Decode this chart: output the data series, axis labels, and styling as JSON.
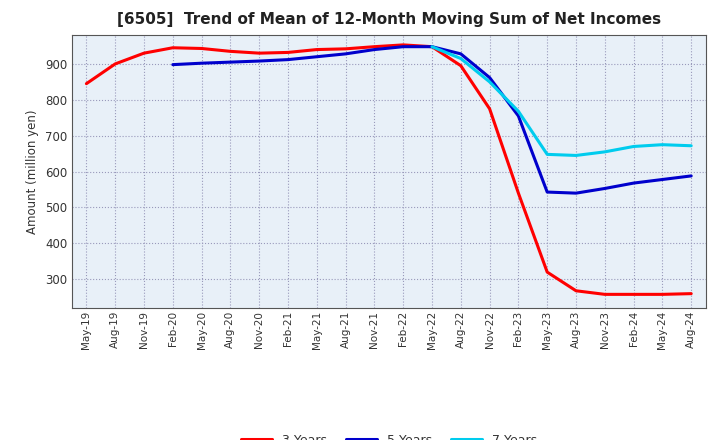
{
  "title": "[6505]  Trend of Mean of 12-Month Moving Sum of Net Incomes",
  "ylabel": "Amount (million yen)",
  "background_color": "#ffffff",
  "plot_bg_color": "#e8f0f8",
  "grid_color": "#9999bb",
  "x_labels": [
    "May-19",
    "Aug-19",
    "Nov-19",
    "Feb-20",
    "May-20",
    "Aug-20",
    "Nov-20",
    "Feb-21",
    "May-21",
    "Aug-21",
    "Nov-21",
    "Feb-22",
    "May-22",
    "Aug-22",
    "Nov-22",
    "Feb-23",
    "May-23",
    "Aug-23",
    "Nov-23",
    "Feb-24",
    "May-24",
    "Aug-24"
  ],
  "ylim": [
    220,
    980
  ],
  "yticks": [
    300,
    400,
    500,
    600,
    700,
    800,
    900
  ],
  "colors": {
    "3 Years": "#ff0000",
    "5 Years": "#0000cc",
    "7 Years": "#00ccee",
    "10 Years": "#008800"
  },
  "series_3yr": [
    845,
    900,
    930,
    945,
    943,
    935,
    930,
    932,
    940,
    942,
    948,
    953,
    948,
    895,
    775,
    540,
    320,
    268,
    258,
    258,
    258,
    260
  ],
  "series_5yr": [
    null,
    null,
    null,
    898,
    902,
    905,
    908,
    912,
    920,
    928,
    940,
    948,
    948,
    928,
    862,
    755,
    543,
    540,
    553,
    568,
    578,
    588
  ],
  "series_7yr": [
    null,
    null,
    null,
    null,
    null,
    null,
    null,
    null,
    null,
    null,
    null,
    null,
    948,
    915,
    850,
    768,
    648,
    645,
    655,
    670,
    675,
    672
  ],
  "series_10yr": [
    null,
    null,
    null,
    null,
    null,
    null,
    null,
    null,
    null,
    null,
    null,
    null,
    null,
    null,
    null,
    null,
    null,
    null,
    null,
    null,
    null,
    null
  ]
}
